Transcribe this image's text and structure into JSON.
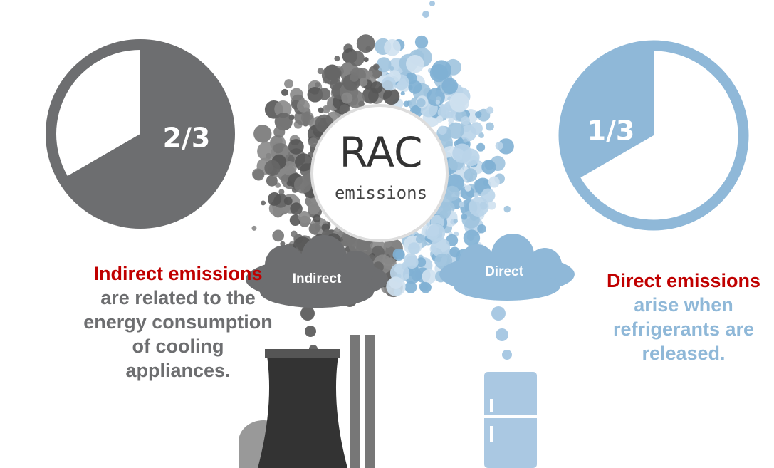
{
  "center": {
    "title": "RAC",
    "subtitle": "emissions"
  },
  "indirect": {
    "pie_label": "2/3",
    "cloud": "Indirect",
    "highlight": "Indirect emissions",
    "text": "are related to the energy consumption of cooling appliances."
  },
  "direct": {
    "pie_label": "1/3",
    "cloud": "Direct",
    "highlight": "Direct emissions",
    "text": "arise when refrigerants are released."
  }
}
